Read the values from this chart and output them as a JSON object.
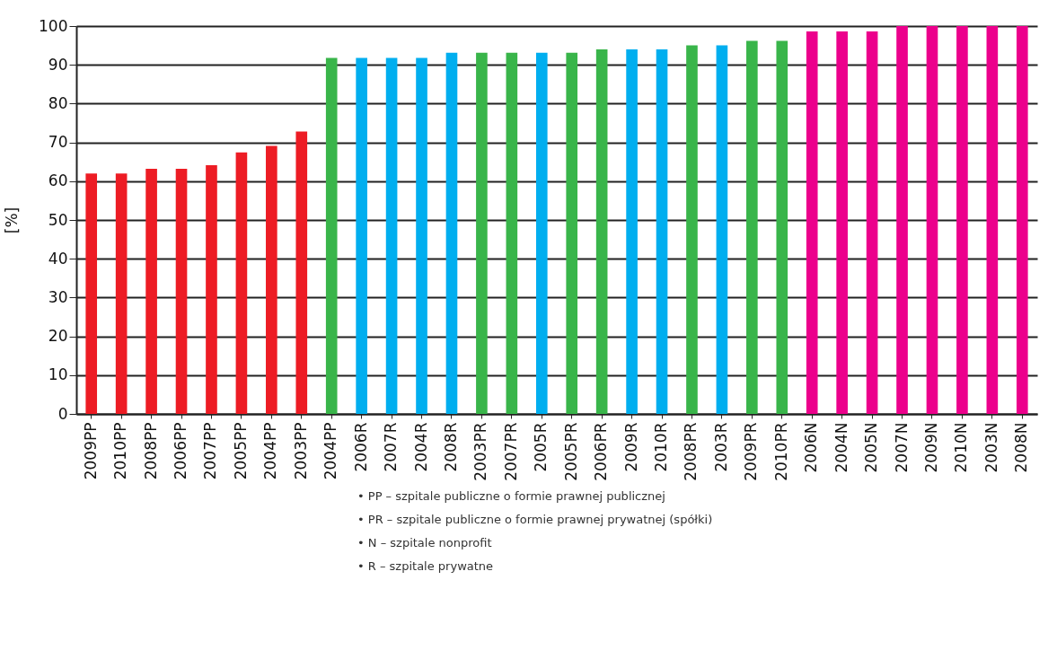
{
  "chart_data": {
    "type": "bar",
    "ylabel": "[%]",
    "categories": [
      "2009PP",
      "2010PP",
      "2008PP",
      "2006PP",
      "2007PP",
      "2005PP",
      "2004PP",
      "2003PP",
      "2004PP",
      "2006R",
      "2007R",
      "2004R",
      "2008R",
      "2003PR",
      "2007PR",
      "2005R",
      "2005PR",
      "2006PR",
      "2009R",
      "2010R",
      "2008PR",
      "2003R",
      "2009PR",
      "2010PR",
      "2006N",
      "2004N",
      "2005N",
      "2007N",
      "2009N",
      "2010N",
      "2003N",
      "2008N"
    ],
    "values": [
      62,
      62,
      63.2,
      63.2,
      64.1,
      67.4,
      69.1,
      72.8,
      91.8,
      91.8,
      91.8,
      91.8,
      93.1,
      93.1,
      93.1,
      93.1,
      93.1,
      94,
      94,
      94,
      95,
      95,
      96.2,
      96.2,
      98.6,
      98.6,
      98.6,
      100,
      100,
      100,
      100,
      100
    ],
    "colors": [
      "#ed1c24",
      "#ed1c24",
      "#ed1c24",
      "#ed1c24",
      "#ed1c24",
      "#ed1c24",
      "#ed1c24",
      "#ed1c24",
      "#39b54a",
      "#00aeef",
      "#00aeef",
      "#00aeef",
      "#00aeef",
      "#39b54a",
      "#39b54a",
      "#00aeef",
      "#39b54a",
      "#39b54a",
      "#00aeef",
      "#00aeef",
      "#39b54a",
      "#00aeef",
      "#39b54a",
      "#39b54a",
      "#ec008c",
      "#ec008c",
      "#ec008c",
      "#ec008c",
      "#ec008c",
      "#ec008c",
      "#ec008c",
      "#ec008c"
    ],
    "ylim": [
      0,
      100
    ],
    "yticks": [
      0,
      10,
      20,
      30,
      40,
      50,
      60,
      70,
      80,
      90,
      100
    ],
    "grid": "y",
    "legend": false,
    "annotations": [
      "• PP – szpitale publiczne o formie prawnej publicznej",
      "• PR – szpitale publiczne o formie prawnej prywatnej (spółki)",
      "• N – szpitale nonprofit",
      "• R – szpitale prywatne"
    ]
  }
}
